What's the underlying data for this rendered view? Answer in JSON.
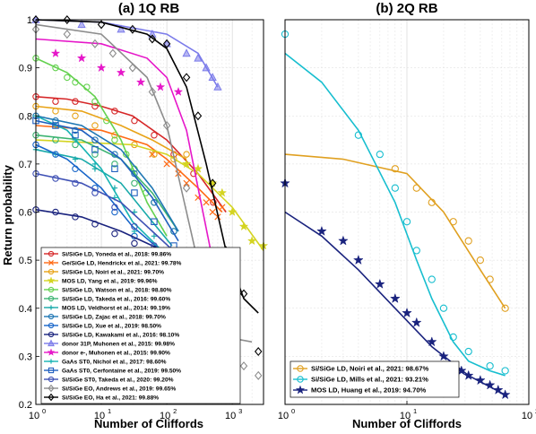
{
  "chart_data": [
    {
      "type": "line",
      "panel": "left",
      "title": "(a) 1Q RB",
      "xlabel": "Number of Cliffords",
      "ylabel": "Return probability",
      "xscale": "log",
      "xlim": [
        1,
        3000
      ],
      "ylim": [
        0.2,
        1.0
      ],
      "xticks": [
        1,
        10,
        100,
        1000
      ],
      "xtick_labels": [
        "10",
        "10",
        "10",
        "10"
      ],
      "xtick_exps": [
        "0",
        "1",
        "2",
        "3"
      ],
      "yticks": [
        0.2,
        0.3,
        0.4,
        0.5,
        0.6,
        0.7,
        0.8,
        0.9,
        1
      ],
      "ytick_labels": [
        "0.2",
        "0.3",
        "0.4",
        "0.5",
        "0.6",
        "0.7",
        "0.8",
        "0.9",
        "1"
      ],
      "grid": true,
      "legend_position": "bottom-left",
      "series": [
        {
          "name": "Si/SiGe LD, Yoneda et al., 2018: 99.86%",
          "color": "#d62728",
          "marker": "o",
          "x": [
            1,
            2,
            4,
            8,
            16,
            32,
            64,
            128,
            256,
            512
          ],
          "y": [
            0.84,
            0.83,
            0.83,
            0.82,
            0.81,
            0.79,
            0.76,
            0.72,
            0.68,
            0.62
          ],
          "fit_x": [
            1,
            3,
            10,
            30,
            100,
            300,
            800
          ],
          "fit_y": [
            0.84,
            0.835,
            0.82,
            0.8,
            0.75,
            0.68,
            0.6
          ]
        },
        {
          "name": "Ge/SiGe LD, Hendrickx et al., 2021: 99.78%",
          "color": "#ff6a14",
          "marker": "x",
          "x": [
            60,
            100,
            150,
            200,
            300,
            400,
            500,
            600,
            700
          ],
          "y": [
            0.72,
            0.7,
            0.68,
            0.66,
            0.63,
            0.62,
            0.6,
            0.59,
            0.61
          ],
          "fit_x": [
            1,
            10,
            50,
            100,
            300,
            700
          ],
          "fit_y": [
            0.78,
            0.77,
            0.74,
            0.71,
            0.65,
            0.6
          ]
        },
        {
          "name": "Si/SiGe LD, Noiri et al., 2021: 99.70%",
          "color": "#e8a317",
          "marker": "o",
          "x": [
            1,
            2,
            4,
            8,
            16,
            32,
            64,
            128,
            200
          ],
          "y": [
            0.82,
            0.81,
            0.8,
            0.78,
            0.76,
            0.74,
            0.72,
            0.71,
            0.72
          ],
          "fit_x": [
            1,
            5,
            20,
            60,
            200
          ],
          "fit_y": [
            0.82,
            0.81,
            0.78,
            0.75,
            0.71
          ]
        },
        {
          "name": "MOS LD, Yang et al., 2019: 99.96%",
          "color": "#d4d421",
          "marker": "*",
          "x": [
            200,
            300,
            500,
            700,
            1000,
            1500,
            2000,
            3000
          ],
          "y": [
            0.7,
            0.69,
            0.66,
            0.64,
            0.6,
            0.57,
            0.54,
            0.53
          ],
          "fit_x": [
            1,
            30,
            100,
            300,
            1000,
            3000
          ],
          "fit_y": [
            0.75,
            0.74,
            0.72,
            0.68,
            0.61,
            0.52
          ]
        },
        {
          "name": "Si/SiGe LD, Watson et al., 2018: 98.80%",
          "color": "#63d14e",
          "marker": "o",
          "x": [
            1,
            2,
            3,
            4,
            6,
            8,
            12,
            16,
            24,
            32,
            48
          ],
          "y": [
            0.92,
            0.9,
            0.88,
            0.87,
            0.86,
            0.83,
            0.79,
            0.75,
            0.72,
            0.69,
            0.64
          ],
          "fit_x": [
            1,
            3,
            8,
            20,
            50,
            100
          ],
          "fit_y": [
            0.92,
            0.89,
            0.84,
            0.75,
            0.62,
            0.55
          ]
        },
        {
          "name": "Si/SiGe LD, Takeda et al., 2016: 99.60%",
          "color": "#3cb371",
          "marker": "o",
          "x": [
            1,
            2,
            4,
            8,
            16,
            32,
            64,
            128
          ],
          "y": [
            0.76,
            0.75,
            0.74,
            0.72,
            0.7,
            0.66,
            0.62,
            0.56
          ],
          "fit_x": [
            1,
            5,
            20,
            60,
            150
          ],
          "fit_y": [
            0.76,
            0.75,
            0.71,
            0.64,
            0.56
          ]
        },
        {
          "name": "MOS LD, Veldhorst et al., 2014: 99.19%",
          "color": "#17a9a9",
          "marker": "+",
          "x": [
            1,
            2,
            4,
            8,
            16,
            32,
            64
          ],
          "y": [
            0.73,
            0.72,
            0.71,
            0.69,
            0.65,
            0.6,
            0.55
          ],
          "fit_x": [
            1,
            5,
            20,
            60,
            120
          ],
          "fit_y": [
            0.73,
            0.71,
            0.66,
            0.58,
            0.53
          ]
        },
        {
          "name": "Si/SiGe LD, Zajac et al., 2018: 99.70%",
          "color": "#1f77b4",
          "marker": "o",
          "x": [
            1,
            2,
            4,
            8,
            16,
            32,
            64,
            128
          ],
          "y": [
            0.8,
            0.79,
            0.77,
            0.75,
            0.72,
            0.68,
            0.62,
            0.56
          ],
          "fit_x": [
            1,
            5,
            20,
            60,
            150
          ],
          "fit_y": [
            0.8,
            0.78,
            0.73,
            0.65,
            0.56
          ]
        },
        {
          "name": "Si/SiGe LD, Xue et al., 2019: 98.50%",
          "color": "#1765c9",
          "marker": "o",
          "x": [
            1,
            2,
            4,
            8,
            16,
            32,
            64
          ],
          "y": [
            0.74,
            0.72,
            0.69,
            0.65,
            0.6,
            0.55,
            0.52
          ],
          "fit_x": [
            1,
            3,
            10,
            30,
            100
          ],
          "fit_y": [
            0.74,
            0.71,
            0.65,
            0.57,
            0.51
          ]
        },
        {
          "name": "Si/SiGe LD, Kawakami et al., 2016: 98.10%",
          "color": "#1a237e",
          "marker": "o",
          "x": [
            1,
            2,
            4,
            8,
            16,
            32,
            64,
            128
          ],
          "y": [
            0.605,
            0.6,
            0.59,
            0.575,
            0.555,
            0.535,
            0.52,
            0.51
          ],
          "fit_x": [
            1,
            5,
            20,
            60,
            150
          ],
          "fit_y": [
            0.605,
            0.59,
            0.56,
            0.53,
            0.51
          ]
        },
        {
          "name": "donor 31P, Muhonen et al., 2015: 99.98%",
          "color": "#7b7bea",
          "marker": "^",
          "x": [
            1,
            5,
            20,
            60,
            100,
            200,
            300,
            400,
            500,
            600
          ],
          "y": [
            1.0,
            0.99,
            0.98,
            0.97,
            0.95,
            0.93,
            0.92,
            0.9,
            0.88,
            0.86
          ],
          "fit_x": [
            1,
            10,
            100,
            300,
            600
          ],
          "fit_y": [
            1.0,
            0.995,
            0.97,
            0.93,
            0.86
          ]
        },
        {
          "name": "donor e-, Muhonen et al., 2015: 99.90%",
          "color": "#e617c9",
          "marker": "*",
          "x": [
            2,
            5,
            10,
            20,
            40,
            80,
            150
          ],
          "y": [
            0.93,
            0.92,
            0.9,
            0.89,
            0.87,
            0.86,
            0.85
          ],
          "fit_x": [
            1,
            10,
            50,
            100,
            200,
            300,
            500
          ],
          "fit_y": [
            0.96,
            0.95,
            0.92,
            0.88,
            0.77,
            0.65,
            0.5
          ]
        },
        {
          "name": "GaAs ST0, Nichol et al., 2017: 98.60%",
          "color": "#17b3b3",
          "marker": "+",
          "x": [
            1,
            2,
            4,
            8,
            16,
            32,
            64
          ],
          "y": [
            0.8,
            0.78,
            0.75,
            0.7,
            0.63,
            0.56,
            0.52
          ],
          "fit_x": [
            1,
            3,
            10,
            30,
            100
          ],
          "fit_y": [
            0.8,
            0.77,
            0.69,
            0.58,
            0.51
          ]
        },
        {
          "name": "GaAs ST0, Cerfontaine et al., 2019: 99.50%",
          "color": "#1f5fbf",
          "marker": "s",
          "x": [
            1,
            2,
            4,
            8,
            16,
            32,
            64,
            128
          ],
          "y": [
            0.79,
            0.78,
            0.76,
            0.73,
            0.69,
            0.64,
            0.58,
            0.53
          ],
          "fit_x": [
            1,
            5,
            20,
            60,
            150
          ],
          "fit_y": [
            0.79,
            0.77,
            0.71,
            0.63,
            0.54
          ]
        },
        {
          "name": "Si/SiGe ST0, Takeda et al., 2020: 99.20%",
          "color": "#3f51b5",
          "marker": "o",
          "x": [
            1,
            2,
            4,
            8,
            16,
            32,
            64,
            128
          ],
          "y": [
            0.68,
            0.67,
            0.66,
            0.64,
            0.61,
            0.57,
            0.53,
            0.51
          ],
          "fit_x": [
            1,
            5,
            20,
            60,
            150
          ],
          "fit_y": [
            0.68,
            0.66,
            0.62,
            0.56,
            0.51
          ]
        },
        {
          "name": "Si/SiGe EO, Andrews et al., 2019: 99.65%",
          "color": "#8c8c8c",
          "marker": "D",
          "x": [
            1,
            3,
            8,
            15,
            30,
            60,
            100,
            200,
            400,
            800,
            1500,
            2500
          ],
          "y": [
            0.98,
            0.97,
            0.95,
            0.93,
            0.9,
            0.85,
            0.78,
            0.65,
            0.45,
            0.35,
            0.28,
            0.26
          ],
          "fit_x": [
            1,
            10,
            50,
            100,
            200,
            400,
            800,
            2000
          ],
          "fit_y": [
            0.99,
            0.97,
            0.88,
            0.78,
            0.6,
            0.42,
            0.34,
            0.33
          ]
        },
        {
          "name": "Si/SiGe EO, Ha et al., 2021: 99.88%",
          "color": "#000000",
          "marker": "D",
          "x": [
            1,
            3,
            10,
            30,
            60,
            100,
            200,
            300,
            500,
            800,
            1500,
            2500
          ],
          "y": [
            1.0,
            1.0,
            0.99,
            0.98,
            0.96,
            0.95,
            0.88,
            0.8,
            0.66,
            0.52,
            0.43,
            0.31
          ],
          "fit_x": [
            1,
            10,
            50,
            100,
            200,
            400,
            800,
            1500,
            2500
          ],
          "fit_y": [
            1.0,
            0.995,
            0.97,
            0.94,
            0.86,
            0.7,
            0.52,
            0.42,
            0.39
          ]
        }
      ]
    },
    {
      "type": "line",
      "panel": "right",
      "title": "(b) 2Q RB",
      "xlabel": "Number of Cliffords",
      "ylabel": "",
      "xscale": "log",
      "xlim": [
        1,
        100
      ],
      "ylim": [
        0.2,
        1.0
      ],
      "xticks": [
        1,
        10,
        100
      ],
      "xtick_labels": [
        "10",
        "10",
        "10"
      ],
      "xtick_exps": [
        "0",
        "1",
        "2"
      ],
      "grid": true,
      "legend_position": "bottom-left",
      "series": [
        {
          "name": "Si/SiGe LD, Noiri et al., 2021: 98.67%",
          "color": "#e0a020",
          "marker": "o",
          "x": [
            8,
            12,
            16,
            24,
            32,
            40,
            48,
            64
          ],
          "y": [
            0.69,
            0.65,
            0.62,
            0.58,
            0.54,
            0.5,
            0.46,
            0.4
          ],
          "fit_x": [
            1,
            3,
            10,
            20,
            40,
            64
          ],
          "fit_y": [
            0.72,
            0.71,
            0.68,
            0.6,
            0.48,
            0.4
          ]
        },
        {
          "name": "Si/SiGe LD, Mills et al., 2021: 93.21%",
          "color": "#17becf",
          "marker": "o",
          "x": [
            1,
            4,
            6,
            8,
            10,
            12,
            16,
            20,
            24,
            32,
            48,
            64
          ],
          "y": [
            0.97,
            0.76,
            0.72,
            0.65,
            0.58,
            0.52,
            0.46,
            0.4,
            0.34,
            0.31,
            0.28,
            0.27
          ],
          "fit_x": [
            1,
            2,
            4,
            8,
            12,
            16,
            24,
            32,
            48,
            64
          ],
          "fit_y": [
            0.93,
            0.87,
            0.77,
            0.62,
            0.5,
            0.42,
            0.33,
            0.29,
            0.27,
            0.26
          ]
        },
        {
          "name": "MOS LD, Huang et al., 2019: 94.70%",
          "color": "#1a237e",
          "marker": "*",
          "x": [
            1,
            2,
            3,
            4,
            6,
            8,
            10,
            12,
            16,
            20,
            24,
            28,
            32,
            40,
            48,
            56,
            64
          ],
          "y": [
            0.66,
            0.56,
            0.54,
            0.5,
            0.45,
            0.42,
            0.39,
            0.37,
            0.33,
            0.3,
            0.28,
            0.27,
            0.26,
            0.25,
            0.24,
            0.23,
            0.22
          ],
          "fit_x": [
            1,
            2,
            4,
            8,
            16,
            32,
            64
          ],
          "fit_y": [
            0.6,
            0.55,
            0.48,
            0.4,
            0.32,
            0.26,
            0.22
          ]
        }
      ]
    }
  ]
}
